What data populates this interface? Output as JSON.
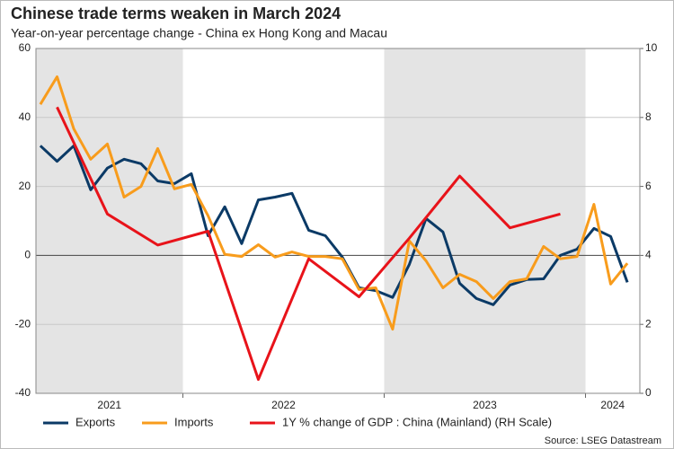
{
  "chart_data": {
    "type": "line",
    "title": "Chinese trade terms weaken in March 2024",
    "subtitle": "Year-on-year percentage change - China ex Hong Kong and Macau",
    "source": "Source: LSEG Datastream",
    "xlim": [
      2021.27,
      2024.27
    ],
    "xticks": [
      2021,
      2022,
      2023,
      2024
    ],
    "shaded_periods": [
      [
        2021,
        2022
      ],
      [
        2023,
        2024
      ]
    ],
    "ylim": [
      -40,
      60
    ],
    "yticks": [
      -40,
      -20,
      0,
      20,
      40,
      60
    ],
    "y2lim": [
      0,
      10
    ],
    "y2ticks": [
      0,
      2,
      4,
      6,
      8,
      10
    ],
    "grid": true,
    "zero_line": true,
    "legend": "bottom",
    "series": [
      {
        "name": "Exports",
        "color": "#0b3a66",
        "x": [
          2021.292,
          2021.375,
          2021.458,
          2021.542,
          2021.625,
          2021.708,
          2021.792,
          2021.875,
          2021.958,
          2022.042,
          2022.125,
          2022.208,
          2022.292,
          2022.375,
          2022.458,
          2022.542,
          2022.625,
          2022.708,
          2022.792,
          2022.875,
          2022.958,
          2023.042,
          2023.125,
          2023.208,
          2023.292,
          2023.375,
          2023.458,
          2023.542,
          2023.625,
          2023.708,
          2023.792,
          2023.875,
          2023.958,
          2024.042,
          2024.125,
          2024.208
        ],
        "values": [
          31.8,
          27.3,
          31.8,
          19,
          25.3,
          27.9,
          26.6,
          21.6,
          20.8,
          23.7,
          5.7,
          14.1,
          3.4,
          16.1,
          16.9,
          18,
          7.3,
          5.7,
          -0.5,
          -9.4,
          -10.2,
          -12.2,
          -2.6,
          10.7,
          6.8,
          -8.1,
          -12.5,
          -14.3,
          -8.6,
          -7,
          -6.8,
          0,
          1.8,
          7.8,
          5.5,
          -7.8
        ]
      },
      {
        "name": "Imports",
        "color": "#f89c1c",
        "x": [
          2021.292,
          2021.375,
          2021.458,
          2021.542,
          2021.625,
          2021.708,
          2021.792,
          2021.875,
          2021.958,
          2022.042,
          2022.125,
          2022.208,
          2022.292,
          2022.375,
          2022.458,
          2022.542,
          2022.625,
          2022.708,
          2022.792,
          2022.875,
          2022.958,
          2023.042,
          2023.125,
          2023.208,
          2023.292,
          2023.375,
          2023.458,
          2023.542,
          2023.625,
          2023.708,
          2023.792,
          2023.875,
          2023.958,
          2024.042,
          2024.125,
          2024.208
        ],
        "values": [
          43.8,
          51.8,
          36.7,
          27.9,
          32.3,
          16.9,
          20,
          31,
          19.3,
          20.6,
          11.5,
          0.3,
          -0.3,
          3.1,
          -0.5,
          1,
          -0.3,
          -0.3,
          -1,
          -9.9,
          -9.4,
          -21.4,
          4.2,
          -1.6,
          -9.4,
          -5.5,
          -7.6,
          -12.5,
          -7.6,
          -6.8,
          2.6,
          -1,
          -0.3,
          14.8,
          -8.3,
          -2.3
        ]
      },
      {
        "name": "1Y % change of GDP : China (Mainland) (RH Scale)",
        "color": "#e8131a",
        "axis": "y2",
        "x": [
          2021.375,
          2021.625,
          2021.875,
          2022.125,
          2022.375,
          2022.625,
          2022.875,
          2023.125,
          2023.375,
          2023.625,
          2023.875
        ],
        "values": [
          8.3,
          5.2,
          4.3,
          4.7,
          0.4,
          3.9,
          2.8,
          4.5,
          6.3,
          4.8,
          5.2
        ]
      }
    ]
  }
}
